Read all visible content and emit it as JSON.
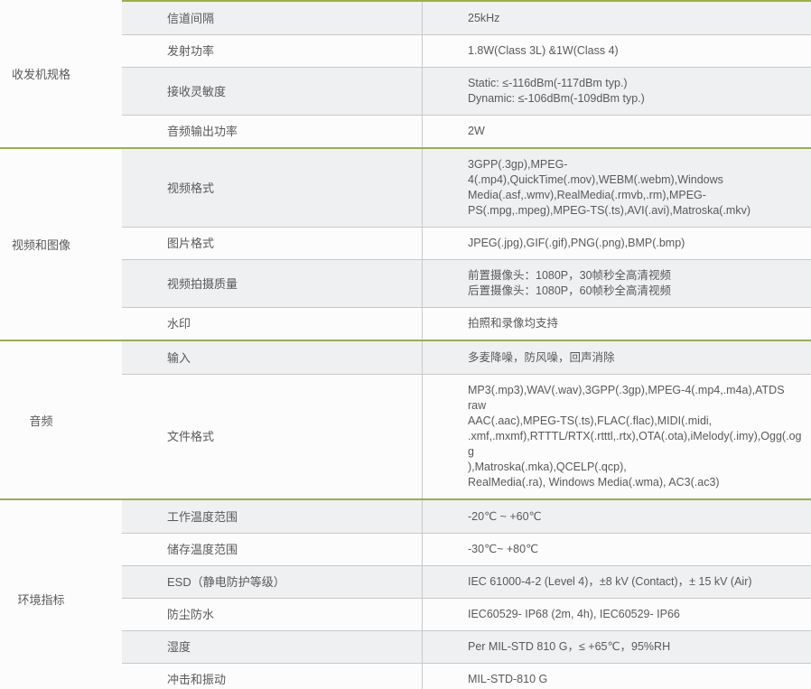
{
  "page": {
    "type": "product-specification-table",
    "language": "zh-CN"
  },
  "colors": {
    "section_divider_green": "#9aad55",
    "row_stripe_gray": "#eff0f1",
    "cell_border_gray": "#c9c9c9",
    "text_gray": "#595959"
  },
  "table": {
    "sections": [
      {
        "category": "收发机规格",
        "rows": [
          {
            "label": "信道间隔",
            "value": "25kHz"
          },
          {
            "label": "发射功率",
            "value": "1.8W(Class 3L) &1W(Class 4)"
          },
          {
            "label": "接收灵敏度",
            "value": "Static: ≤-116dBm(-117dBm typ.)\nDynamic: ≤-106dBm(-109dBm typ.)"
          },
          {
            "label": "音频输出功率",
            "value": "2W"
          }
        ]
      },
      {
        "category": "视频和图像",
        "rows": [
          {
            "label": "视频格式",
            "value": "3GPP(.3gp),MPEG-\n4(.mp4),QuickTime(.mov),WEBM(.webm),Windows\nMedia(.asf,.wmv),RealMedia(.rmvb,.rm),MPEG-\nPS(.mpg,.mpeg),MPEG-TS(.ts),AVI(.avi),Matroska(.mkv)"
          },
          {
            "label": "图片格式",
            "value": "JPEG(.jpg),GIF(.gif),PNG(.png),BMP(.bmp)"
          },
          {
            "label": "视频拍摄质量",
            "value": "前置摄像头：1080P，30帧秒全高清视频\n后置摄像头：1080P，60帧秒全高清视频"
          },
          {
            "label": "水印",
            "value": "拍照和录像均支持"
          }
        ]
      },
      {
        "category": "音频",
        "rows": [
          {
            "label": "输入",
            "value": "多麦降噪，防风噪，回声消除"
          },
          {
            "label": "文件格式",
            "value": "MP3(.mp3),WAV(.wav),3GPP(.3gp),MPEG-4(.mp4,.m4a),ATDS raw\nAAC(.aac),MPEG-TS(.ts),FLAC(.flac),MIDI(.midi,\n.xmf,.mxmf),RTTTL/RTX(.rtttl,.rtx),OTA(.ota),iMelody(.imy),Ogg(.ogg\n),Matroska(.mka),QCELP(.qcp),\nRealMedia(.ra), Windows Media(.wma), AC3(.ac3)"
          }
        ]
      },
      {
        "category": "环境指标",
        "rows": [
          {
            "label": "工作温度范围",
            "value": "-20℃ ~ +60℃"
          },
          {
            "label": "储存温度范围",
            "value": "-30℃~ +80℃"
          },
          {
            "label": "ESD（静电防护等级）",
            "value": "IEC 61000-4-2 (Level 4)，±8 kV (Contact)，± 15 kV (Air)"
          },
          {
            "label": "防尘防水",
            "value": "IEC60529- IP68 (2m, 4h), IEC60529- IP66"
          },
          {
            "label": "湿度",
            "value": "Per MIL-STD 810 G，≤ +65℃，95%RH"
          },
          {
            "label": "冲击和振动",
            "value": "MIL-STD-810 G"
          }
        ]
      }
    ]
  }
}
